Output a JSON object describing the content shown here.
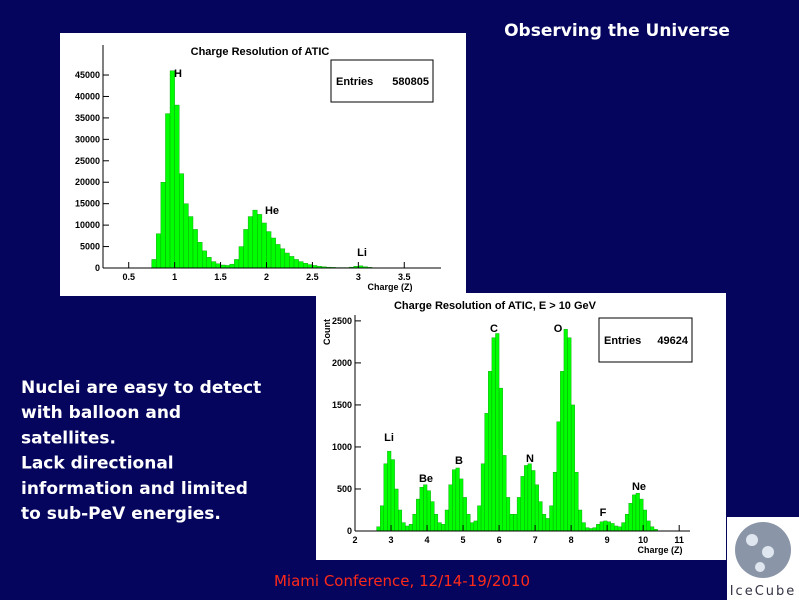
{
  "slide": {
    "title": "Observing the Universe",
    "body": [
      "Nuclei are easy to detect",
      "with balloon and",
      "satellites.",
      "Lack directional",
      "information  and limited",
      "to sub-PeV energies."
    ],
    "footer": "Miami Conference, 12/14-19/2010",
    "logo": "IceCube"
  },
  "chart_data": [
    {
      "type": "histogram",
      "title": "Charge Resolution of ATIC",
      "x_label": "Charge (Z)",
      "color": "#00ff00",
      "bins": [
        0.7,
        0.75,
        0.8,
        0.85,
        0.9,
        0.95,
        1.0,
        1.05,
        1.1,
        1.15,
        1.2,
        1.25,
        1.3,
        1.35,
        1.4,
        1.45,
        1.5,
        1.55,
        1.6,
        1.65,
        1.7,
        1.75,
        1.8,
        1.85,
        1.9,
        1.95,
        2.0,
        2.05,
        2.1,
        2.15,
        2.2,
        2.25,
        2.3,
        2.35,
        2.4,
        2.45,
        2.5,
        2.55,
        2.6,
        2.65,
        2.7,
        2.75,
        2.8,
        2.85,
        2.9,
        2.95,
        3.0,
        3.05,
        3.1,
        3.15,
        3.2
      ],
      "values": [
        0,
        2000,
        8000,
        20000,
        36000,
        46000,
        38000,
        22000,
        15000,
        12000,
        9000,
        6000,
        4000,
        2500,
        1500,
        1000,
        700,
        600,
        900,
        2000,
        5000,
        9000,
        12000,
        13500,
        12500,
        10500,
        8500,
        7000,
        5500,
        4500,
        3500,
        2700,
        2000,
        1500,
        1100,
        800,
        600,
        400,
        300,
        200,
        150,
        100,
        100,
        100,
        200,
        400,
        500,
        300,
        150,
        50
      ],
      "xlim": [
        0.22,
        3.9
      ],
      "xticks": [
        0.5,
        1,
        1.5,
        2,
        2.5,
        3,
        3.5
      ],
      "ylim": [
        0,
        52000
      ],
      "yticks": [
        0,
        5000,
        10000,
        15000,
        20000,
        25000,
        30000,
        35000,
        40000,
        45000
      ],
      "stats": {
        "label": "Entries",
        "value": 580805
      },
      "annotations": [
        "H",
        "He",
        "Li"
      ]
    },
    {
      "type": "histogram",
      "title": "Charge Resolution of ATIC, E > 10 GeV",
      "x_label": "Charge (Z)",
      "y_label": "Count",
      "color": "#00ff00",
      "bins": [
        2.6,
        2.7,
        2.8,
        2.9,
        3.0,
        3.1,
        3.2,
        3.3,
        3.4,
        3.5,
        3.6,
        3.7,
        3.8,
        3.9,
        4.0,
        4.1,
        4.2,
        4.3,
        4.4,
        4.5,
        4.6,
        4.7,
        4.8,
        4.9,
        5.0,
        5.1,
        5.2,
        5.3,
        5.4,
        5.5,
        5.6,
        5.7,
        5.8,
        5.9,
        6.0,
        6.1,
        6.2,
        6.3,
        6.4,
        6.5,
        6.6,
        6.7,
        6.8,
        6.9,
        7.0,
        7.1,
        7.2,
        7.3,
        7.4,
        7.5,
        7.6,
        7.7,
        7.8,
        7.9,
        8.0,
        8.1,
        8.2,
        8.3,
        8.4,
        8.5,
        8.6,
        8.7,
        8.8,
        8.9,
        9.0,
        9.1,
        9.2,
        9.3,
        9.4,
        9.5,
        9.6,
        9.7,
        9.8,
        9.9,
        10.0,
        10.1,
        10.2,
        10.3,
        10.4
      ],
      "values": [
        50,
        300,
        800,
        950,
        850,
        500,
        250,
        100,
        60,
        80,
        200,
        380,
        520,
        550,
        480,
        350,
        200,
        100,
        80,
        250,
        550,
        730,
        750,
        620,
        400,
        200,
        100,
        120,
        300,
        800,
        1400,
        1900,
        2300,
        2350,
        1700,
        900,
        400,
        200,
        200,
        400,
        650,
        780,
        800,
        720,
        550,
        350,
        200,
        150,
        300,
        700,
        1300,
        1900,
        2400,
        2300,
        1500,
        700,
        250,
        100,
        40,
        30,
        40,
        80,
        110,
        120,
        110,
        90,
        60,
        50,
        100,
        200,
        330,
        430,
        450,
        380,
        250,
        120,
        50,
        20
      ],
      "xlim": [
        2,
        11.3
      ],
      "xticks": [
        2,
        3,
        4,
        5,
        6,
        7,
        8,
        9,
        10,
        11
      ],
      "ylim": [
        0,
        2570
      ],
      "yticks": [
        0,
        500,
        1000,
        1500,
        2000,
        2500
      ],
      "stats": {
        "label": "Entries",
        "value": 49624
      },
      "annotations": [
        "C",
        "O",
        "Li",
        "Be",
        "B",
        "N",
        "F",
        "Ne"
      ]
    }
  ]
}
